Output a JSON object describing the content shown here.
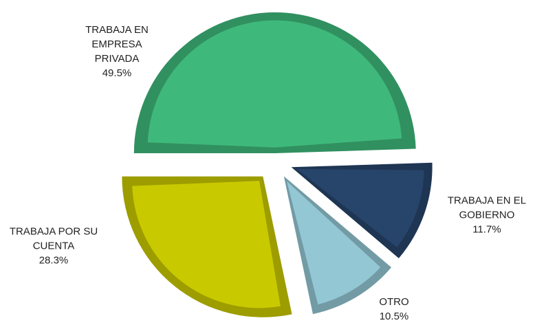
{
  "chart_data": {
    "type": "pie",
    "categories": [
      "TRABAJA EN EMPRESA PRIVADA",
      "TRABAJA EN EL GOBIERNO",
      "OTRO",
      "TRABAJA POR SU CUENTA"
    ],
    "values": [
      49.5,
      11.7,
      10.5,
      28.3
    ],
    "value_labels": [
      "49.5%",
      "11.7%",
      "10.5%",
      "28.3%"
    ],
    "colors": [
      "#3fb97b",
      "#27446a",
      "#93c7d4",
      "#c9c900"
    ]
  }
}
